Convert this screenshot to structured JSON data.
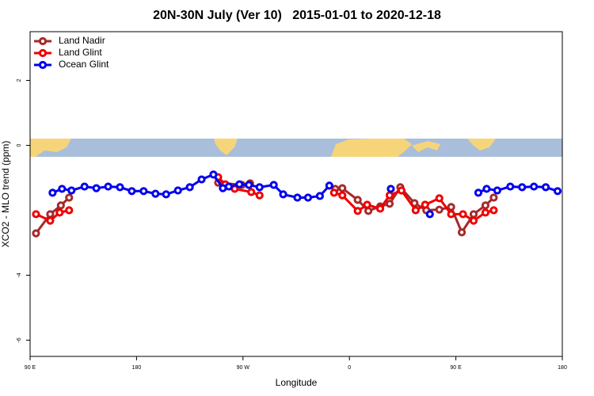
{
  "chart_data": {
    "type": "line",
    "title": "20N-30N July (Ver 10)   2015-01-01 to 2020-12-18",
    "x_label": "Longitude",
    "y_label": "XCO2 - MLO trend (ppm)",
    "xlim": [
      90,
      540
    ],
    "ylim": [
      -6.5,
      3.5
    ],
    "xticks": [
      {
        "value": 90,
        "label": "90 E"
      },
      180,
      {
        "value": 270,
        "label": "90 W"
      },
      {
        "value": 360,
        "label": "0"
      },
      {
        "value": 450,
        "label": "90 E"
      },
      {
        "value": 540,
        "label": "180"
      }
    ],
    "yticks": [
      2,
      0,
      -4,
      -6
    ],
    "legend": "top-left",
    "series": [
      {
        "name": "Land Nadir",
        "color": "#a52a2a",
        "x": [
          95,
          107,
          116,
          123,
          null,
          249,
          269,
          276,
          null,
          348,
          354,
          367,
          376,
          386,
          394,
          403,
          415,
          425,
          436,
          446,
          455,
          465,
          475,
          482
        ],
        "values": [
          -2.71,
          -2.12,
          -1.85,
          -1.61,
          null,
          -1.15,
          -1.22,
          -1.17,
          null,
          -1.34,
          -1.32,
          -1.68,
          -2.02,
          -1.88,
          -1.8,
          -1.29,
          -1.78,
          -2.0,
          -1.98,
          -1.9,
          -2.68,
          -2.12,
          -1.85,
          -1.61
        ]
      },
      {
        "name": "Land Glint",
        "color": "#ee0000",
        "x": [
          95,
          107,
          115,
          123,
          null,
          249,
          255,
          263,
          277,
          284,
          null,
          347,
          354,
          367,
          375,
          386,
          394,
          404,
          416,
          424,
          436,
          446,
          456,
          465,
          475,
          482
        ],
        "values": [
          -2.12,
          -2.32,
          -2.07,
          -2.0,
          null,
          -0.98,
          -1.2,
          -1.34,
          -1.44,
          -1.54,
          null,
          -1.46,
          -1.54,
          -2.02,
          -1.83,
          -1.95,
          -1.54,
          -1.39,
          -2.0,
          -1.83,
          -1.63,
          -2.12,
          -2.12,
          -2.32,
          -2.07,
          -2.0
        ]
      },
      {
        "name": "Ocean Glint",
        "color": "#0000ee",
        "x": [
          109,
          117,
          125,
          136,
          146,
          156,
          166,
          176,
          186,
          196,
          205,
          215,
          225,
          235,
          245,
          253,
          258,
          267,
          275,
          284,
          296,
          304,
          316,
          325,
          335,
          343,
          null,
          395,
          null,
          428,
          null,
          469,
          476,
          485,
          496,
          506,
          516,
          526,
          536
        ],
        "values": [
          -1.46,
          -1.34,
          -1.39,
          -1.27,
          -1.32,
          -1.27,
          -1.29,
          -1.41,
          -1.41,
          -1.49,
          -1.51,
          -1.39,
          -1.29,
          -1.05,
          -0.9,
          -1.32,
          -1.27,
          -1.2,
          -1.22,
          -1.29,
          -1.22,
          -1.51,
          -1.61,
          -1.61,
          -1.56,
          -1.24,
          null,
          -1.34,
          null,
          -2.12,
          null,
          -1.46,
          -1.34,
          -1.39,
          -1.27,
          -1.29,
          -1.27,
          -1.29,
          -1.41
        ]
      }
    ]
  }
}
